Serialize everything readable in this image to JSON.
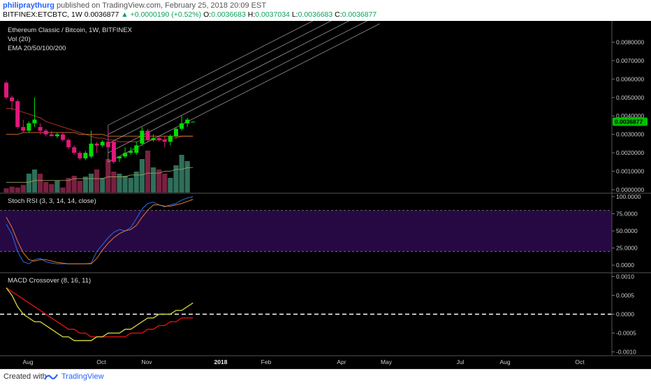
{
  "header": {
    "user": "philipraythurg",
    "published": "published on TradingView.com, February 25, 2018 20:09 EST",
    "symbol": "BITFINEX:ETCBTC, 1W",
    "last": "0.0036877",
    "change": "+0.0000190 (+0.52%)",
    "o_label": "O:",
    "o": "0.0036683",
    "h_label": "H:",
    "h": "0.0037034",
    "l_label": "L:",
    "l": "0.0036683",
    "c_label": "C:",
    "c": "0.0036877"
  },
  "main_pane": {
    "title": "Ethereum Classic / Bitcoin, 1W, BITFINEX",
    "vol_label": "Vol (20)",
    "ema_label": "EMA 20/50/100/200",
    "price_badge": "0.0036877",
    "badge_color": "#00c000"
  },
  "stoch_pane": {
    "title": "Stoch RSI (3, 3, 14, 14, close)"
  },
  "macd_pane": {
    "title": "MACD Crossover (8, 16, 11)"
  },
  "footer": {
    "created_with": "Created with",
    "brand": "TradingView"
  },
  "colors": {
    "up": "#00dd00",
    "down": "#e0187a",
    "up_vol": "#2f6f5a",
    "down_vol": "#7a2040"
  },
  "chart_data": {
    "type": "candlestick",
    "x_ticks": [
      "Aug",
      "Oct",
      "Nov",
      "2018",
      "Feb",
      "Apr",
      "May",
      "Jul",
      "Aug",
      "Oct"
    ],
    "y_ticks": {
      "price": [
        "0.0080000",
        "0.0070000",
        "0.0060000",
        "0.0050000",
        "0.0040000",
        "0.0030000",
        "0.0020000",
        "0.0010000",
        "0.0000000"
      ],
      "stoch": [
        "100.0000",
        "75.0000",
        "50.0000",
        "25.0000",
        "0.0000"
      ],
      "macd": [
        "0.0010",
        "0.0005",
        "0.0000",
        "-0.0005",
        "-0.0010"
      ]
    },
    "ranges": {
      "price": [
        0.0,
        0.009
      ],
      "stoch": [
        -10,
        105
      ],
      "macd": [
        -0.0011,
        0.0011
      ]
    },
    "candles": [
      {
        "o": 0.0058,
        "h": 0.0059,
        "l": 0.0049,
        "c": 0.005
      },
      {
        "o": 0.005,
        "h": 0.0051,
        "l": 0.0043,
        "c": 0.0048
      },
      {
        "o": 0.0048,
        "h": 0.0049,
        "l": 0.0033,
        "c": 0.0034
      },
      {
        "o": 0.0034,
        "h": 0.0038,
        "l": 0.0031,
        "c": 0.0032
      },
      {
        "o": 0.0032,
        "h": 0.0037,
        "l": 0.0031,
        "c": 0.0036
      },
      {
        "o": 0.0036,
        "h": 0.005,
        "l": 0.0034,
        "c": 0.0038
      },
      {
        "o": 0.0034,
        "h": 0.0036,
        "l": 0.003,
        "c": 0.0032
      },
      {
        "o": 0.0032,
        "h": 0.0033,
        "l": 0.0029,
        "c": 0.003
      },
      {
        "o": 0.003,
        "h": 0.0032,
        "l": 0.0029,
        "c": 0.0029
      },
      {
        "o": 0.0029,
        "h": 0.0031,
        "l": 0.0028,
        "c": 0.003
      },
      {
        "o": 0.003,
        "h": 0.0031,
        "l": 0.0026,
        "c": 0.0027
      },
      {
        "o": 0.0027,
        "h": 0.0028,
        "l": 0.0022,
        "c": 0.0023
      },
      {
        "o": 0.0023,
        "h": 0.0024,
        "l": 0.0019,
        "c": 0.002
      },
      {
        "o": 0.002,
        "h": 0.0021,
        "l": 0.0016,
        "c": 0.0017
      },
      {
        "o": 0.0017,
        "h": 0.0021,
        "l": 0.0016,
        "c": 0.002
      },
      {
        "o": 0.0018,
        "h": 0.0032,
        "l": 0.0017,
        "c": 0.0025
      },
      {
        "o": 0.0025,
        "h": 0.0026,
        "l": 0.002,
        "c": 0.0024
      },
      {
        "o": 0.0024,
        "h": 0.0027,
        "l": 0.0023,
        "c": 0.0026
      },
      {
        "o": 0.0026,
        "h": 0.0033,
        "l": 0.0022,
        "c": 0.0023
      },
      {
        "o": 0.0026,
        "h": 0.0027,
        "l": 0.0014,
        "c": 0.0015
      },
      {
        "o": 0.0017,
        "h": 0.0018,
        "l": 0.0015,
        "c": 0.0018
      },
      {
        "o": 0.0018,
        "h": 0.0023,
        "l": 0.0017,
        "c": 0.002
      },
      {
        "o": 0.002,
        "h": 0.0023,
        "l": 0.0019,
        "c": 0.0021
      },
      {
        "o": 0.002,
        "h": 0.0026,
        "l": 0.0019,
        "c": 0.0024
      },
      {
        "o": 0.0025,
        "h": 0.0034,
        "l": 0.0024,
        "c": 0.0032
      },
      {
        "o": 0.0032,
        "h": 0.0033,
        "l": 0.0026,
        "c": 0.0027
      },
      {
        "o": 0.0027,
        "h": 0.003,
        "l": 0.0026,
        "c": 0.0028
      },
      {
        "o": 0.0028,
        "h": 0.0029,
        "l": 0.0026,
        "c": 0.0027
      },
      {
        "o": 0.0027,
        "h": 0.0029,
        "l": 0.0023,
        "c": 0.0026
      },
      {
        "o": 0.0026,
        "h": 0.003,
        "l": 0.0024,
        "c": 0.0029
      },
      {
        "o": 0.0029,
        "h": 0.0034,
        "l": 0.0028,
        "c": 0.0033
      },
      {
        "o": 0.0033,
        "h": 0.004,
        "l": 0.0032,
        "c": 0.0036
      },
      {
        "o": 0.0036,
        "h": 0.0039,
        "l": 0.0034,
        "c": 0.0038
      },
      {
        "o": 0.0036683,
        "h": 0.0037034,
        "l": 0.0036683,
        "c": 0.0036877
      }
    ],
    "volume_relative": [
      0.1,
      0.14,
      0.12,
      0.18,
      0.45,
      0.55,
      0.45,
      0.25,
      0.2,
      0.28,
      0.12,
      0.35,
      0.4,
      0.28,
      0.38,
      0.45,
      0.55,
      0.35,
      0.8,
      0.5,
      0.45,
      0.4,
      0.35,
      0.5,
      0.8,
      1.0,
      0.6,
      0.55,
      0.45,
      0.35,
      0.65,
      0.9,
      0.75,
      0.0
    ],
    "ema_lines": [
      {
        "name": "EMA 20",
        "color": "#d33a2a",
        "values": [
          0.0044,
          0.0044,
          0.0043,
          0.0042,
          0.0041,
          0.004,
          0.0039,
          0.0037,
          0.0036,
          0.0035,
          0.0034,
          0.0033,
          0.0032,
          0.0031,
          0.003,
          0.0029,
          0.0028,
          0.0028,
          0.0027,
          0.0027,
          0.0026,
          0.0026,
          0.0026,
          0.0026,
          0.0027,
          0.0027,
          0.0027,
          0.0027,
          0.0027,
          0.0028,
          0.0028,
          0.0029,
          0.0029,
          0.0029
        ]
      },
      {
        "name": "EMA 50",
        "color": "#e07a30",
        "values": [
          0.003,
          0.003,
          0.003,
          0.0031,
          0.0031,
          0.0031,
          0.0031,
          0.0031,
          0.0031,
          0.0031,
          0.0031,
          0.0031,
          0.0031,
          0.003,
          0.003,
          0.003,
          0.003,
          0.003,
          0.0029,
          0.0029,
          0.0029,
          0.0029,
          0.0029,
          0.0029,
          0.0029,
          0.0029,
          0.0029,
          0.0029,
          0.0029,
          0.0029,
          0.0029,
          0.0029,
          0.0029,
          0.0029
        ]
      },
      {
        "name": "EMA 100",
        "color": "#a0a060",
        "values": [
          0.0004,
          0.0004,
          0.0004,
          0.0004,
          0.0004,
          0.0005,
          0.0005,
          0.0005,
          0.0005,
          0.0005,
          0.0005,
          0.0005,
          0.0006,
          0.0006,
          0.0006,
          0.0006,
          0.0006,
          0.0006,
          0.0007,
          0.0007,
          0.0007,
          0.0007,
          0.0008,
          0.0008,
          0.0008,
          0.0009,
          0.0009,
          0.0009,
          0.001,
          0.001,
          0.0011,
          0.0011,
          0.0012,
          0.0012
        ]
      }
    ],
    "channel": {
      "x0_index": 18,
      "x1_index": 66,
      "y0": [
        0.0015,
        0.002,
        0.0025,
        0.003,
        0.0035
      ],
      "y1": [
        0.009,
        0.0095,
        0.01,
        0.0105,
        0.011
      ],
      "apex_index": 18,
      "apex_price": 0.0035
    },
    "stoch_k": [
      60,
      45,
      20,
      5,
      2,
      8,
      10,
      5,
      3,
      2,
      2,
      2,
      2,
      2,
      2,
      3,
      20,
      30,
      40,
      48,
      52,
      50,
      55,
      68,
      82,
      90,
      92,
      88,
      85,
      88,
      90,
      95,
      98,
      100
    ],
    "stoch_d": [
      70,
      55,
      35,
      18,
      8,
      6,
      8,
      8,
      6,
      4,
      3,
      2,
      2,
      2,
      2,
      2,
      10,
      22,
      32,
      40,
      46,
      50,
      52,
      58,
      70,
      80,
      88,
      88,
      86,
      86,
      88,
      90,
      93,
      96
    ],
    "macd_line": [
      0.0007,
      0.0005,
      0.0002,
      0.0,
      -0.0001,
      -0.0002,
      -0.0002,
      -0.0003,
      -0.0004,
      -0.0005,
      -0.0006,
      -0.0006,
      -0.0007,
      -0.0007,
      -0.0007,
      -0.0007,
      -0.0006,
      -0.0006,
      -0.0005,
      -0.0005,
      -0.0005,
      -0.0004,
      -0.0004,
      -0.0003,
      -0.0002,
      -0.0001,
      -0.0001,
      0.0,
      0.0,
      0.0,
      0.0001,
      0.0001,
      0.0002,
      0.0003
    ],
    "signal_line": [
      0.0007,
      0.0006,
      0.0005,
      0.0004,
      0.0003,
      0.0002,
      0.0001,
      0.0,
      -0.0001,
      -0.0002,
      -0.0003,
      -0.0004,
      -0.0004,
      -0.0005,
      -0.0005,
      -0.0006,
      -0.0006,
      -0.0006,
      -0.0006,
      -0.0006,
      -0.0006,
      -0.0006,
      -0.0005,
      -0.0005,
      -0.0005,
      -0.0004,
      -0.0004,
      -0.0003,
      -0.0003,
      -0.0002,
      -0.0002,
      -0.0001,
      -0.0001,
      -0.0001
    ]
  }
}
